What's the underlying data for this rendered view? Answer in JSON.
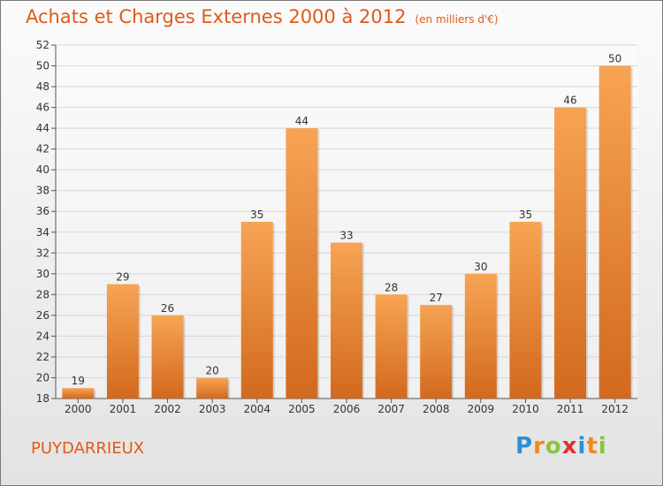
{
  "title": "Achats et Charges Externes 2000 à 2012",
  "subtitle": "(en milliers d'€)",
  "commune": "PUYDARRIEUX",
  "brand": {
    "letters": [
      "P",
      "r",
      "o",
      "x",
      "i",
      "t",
      "i"
    ],
    "colors": [
      "#2b8fd6",
      "#f08a1a",
      "#8bc43f",
      "#e0302f",
      "#2b8fd6",
      "#f08a1a",
      "#8bc43f"
    ]
  },
  "colors": {
    "bar_top": "#f7a454",
    "bar_bottom": "#d2691e",
    "title": "#e05a18",
    "grid": "#d6d6d6"
  },
  "chart_data": {
    "type": "bar",
    "categories": [
      "2000",
      "2001",
      "2002",
      "2003",
      "2004",
      "2005",
      "2006",
      "2007",
      "2008",
      "2009",
      "2010",
      "2011",
      "2012"
    ],
    "values": [
      19,
      29,
      26,
      20,
      35,
      44,
      33,
      28,
      27,
      30,
      35,
      46,
      50
    ],
    "ylim": [
      18,
      52
    ],
    "yticks": [
      18,
      20,
      22,
      24,
      26,
      28,
      30,
      32,
      34,
      36,
      38,
      40,
      42,
      44,
      46,
      48,
      50,
      52
    ],
    "grid": true
  }
}
